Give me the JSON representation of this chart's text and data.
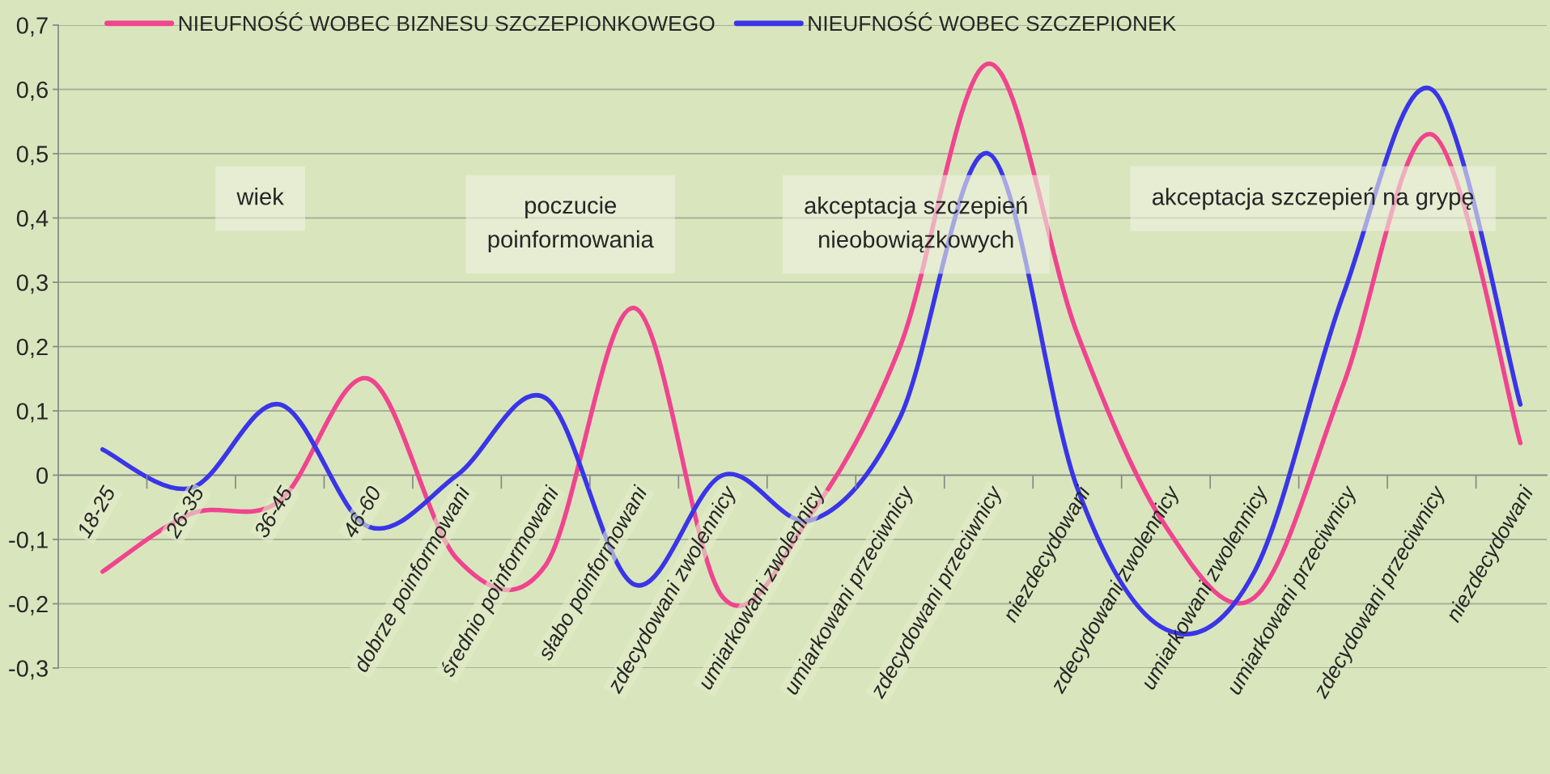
{
  "chart_data": {
    "type": "line",
    "categories": [
      "18-25",
      "26-35",
      "36-45",
      "46-60",
      "dobrze poinformowani",
      "średnio poinformowani",
      "słabo poinformowani",
      "zdecydowani zwolennicy",
      "umiarkowani zwolennicy",
      "umiarkowani przeciwnicy",
      "zdecydowani przeciwnicy",
      "niezdecydowani",
      "zdecydowani zwolennicy",
      "umiarkowani zwolennicy",
      "umiarkowani przeciwnicy",
      "zdecydowani przeciwnicy",
      "niezdecydowani"
    ],
    "series": [
      {
        "name": "NIEUFNOŚĆ WOBEC BIZNESU SZCZEPIONKOWEGO",
        "color": "#f0448f",
        "values": [
          -0.15,
          -0.06,
          -0.04,
          0.15,
          -0.13,
          -0.14,
          0.26,
          -0.19,
          -0.06,
          0.2,
          0.64,
          0.22,
          -0.08,
          -0.19,
          0.14,
          0.53,
          0.05
        ]
      },
      {
        "name": "NIEUFNOŚĆ WOBEC SZCZEPIONEK",
        "color": "#3a35e8",
        "values": [
          0.04,
          -0.02,
          0.11,
          -0.08,
          0.0,
          0.12,
          -0.17,
          0.0,
          -0.07,
          0.09,
          0.5,
          -0.02,
          -0.24,
          -0.15,
          0.28,
          0.6,
          0.11
        ]
      }
    ],
    "ylim": [
      -0.3,
      0.7
    ],
    "yticks": [
      {
        "value": -0.3,
        "label": "-0,3"
      },
      {
        "value": -0.2,
        "label": "-0,2"
      },
      {
        "value": -0.1,
        "label": "-0,1"
      },
      0,
      {
        "value": 0.1,
        "label": "0,1"
      },
      {
        "value": 0.2,
        "label": "0,2"
      },
      {
        "value": 0.3,
        "label": "0,3"
      },
      {
        "value": 0.4,
        "label": "0,4"
      },
      {
        "value": 0.5,
        "label": "0,5"
      },
      {
        "value": 0.6,
        "label": "0,6"
      },
      {
        "value": 0.7,
        "label": "0,7"
      }
    ],
    "grid": "y",
    "legend": "top left",
    "line_style": "solid",
    "marker": "none",
    "annotations": [
      "wiek",
      "poczucie\npoinformowania",
      "akceptacja szczepień\nnieobowiązkowych",
      "akceptacja szczepień na grypę"
    ]
  }
}
